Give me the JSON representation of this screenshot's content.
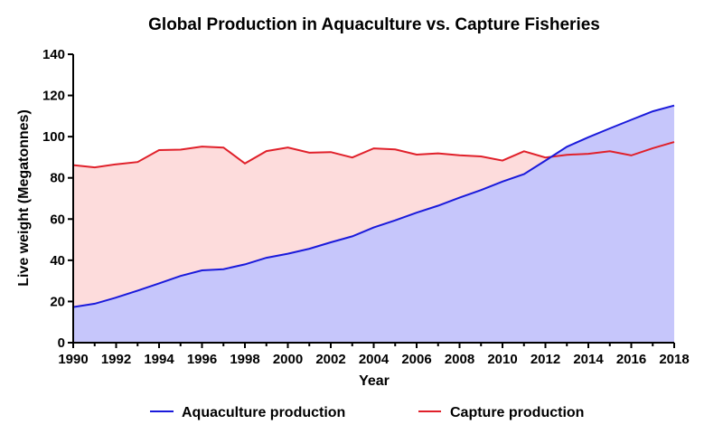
{
  "chart_data": {
    "type": "area",
    "title": "Global Production in Aquaculture vs. Capture Fisheries",
    "xlabel": "Year",
    "ylabel": "Live weight (Megatonnes)",
    "xlim": [
      1990,
      2018
    ],
    "ylim": [
      0,
      140
    ],
    "x_ticks": [
      "1990",
      "1992",
      "1994",
      "1996",
      "1998",
      "2000",
      "2002",
      "2004",
      "2006",
      "2008",
      "2010",
      "2012",
      "2014",
      "2016",
      "2018"
    ],
    "y_ticks": [
      "0",
      "20",
      "40",
      "60",
      "80",
      "100",
      "120",
      "140"
    ],
    "grid": false,
    "legend_position": "bottom",
    "x": [
      1990,
      1991,
      1992,
      1993,
      1994,
      1995,
      1996,
      1997,
      1998,
      1999,
      2000,
      2001,
      2002,
      2003,
      2004,
      2005,
      2006,
      2007,
      2008,
      2009,
      2010,
      2011,
      2012,
      2013,
      2014,
      2015,
      2016,
      2017,
      2018
    ],
    "series": [
      {
        "name": "Aquaculture production",
        "color": "#1a1adb",
        "fill": "#c6c6fb",
        "values": [
          17.3,
          18.9,
          21.9,
          25.3,
          28.8,
          32.4,
          35.1,
          35.7,
          38.0,
          41.2,
          43.2,
          45.6,
          48.7,
          51.6,
          55.9,
          59.4,
          63.1,
          66.5,
          70.4,
          74.1,
          78.2,
          81.8,
          88.4,
          95.1,
          99.7,
          104.0,
          108.2,
          112.3,
          115.1
        ]
      },
      {
        "name": "Capture production",
        "color": "#e0202a",
        "fill": "#fddcdc",
        "values": [
          86.2,
          85.1,
          86.6,
          87.7,
          93.5,
          93.7,
          95.2,
          94.7,
          87.0,
          93.0,
          94.7,
          92.2,
          92.5,
          89.9,
          94.3,
          93.8,
          91.3,
          91.9,
          91.0,
          90.4,
          88.4,
          92.9,
          89.9,
          91.2,
          91.7,
          92.9,
          90.9,
          94.4,
          97.4
        ]
      }
    ]
  }
}
